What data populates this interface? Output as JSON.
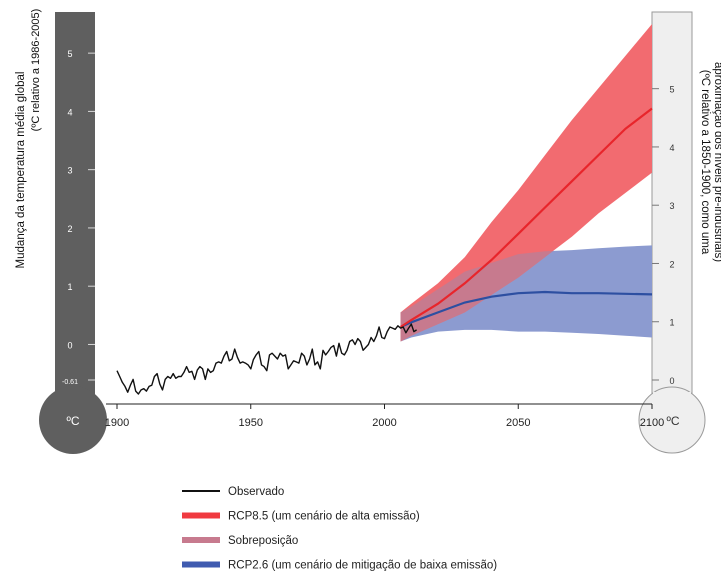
{
  "chart_data": {
    "type": "line",
    "x_ticks": [
      1900,
      1950,
      2000,
      2050,
      2100
    ],
    "xlim": [
      1896,
      2100
    ],
    "left_axis": {
      "label_line1": "Mudança da temperatura média global",
      "label_line2": "(ºC relativo a 1986-2005)",
      "ticks": [
        "5",
        "4",
        "3",
        "2",
        "1",
        "0",
        "-0.61"
      ],
      "unit": "ºC",
      "ylim": [
        -0.61,
        5.5
      ]
    },
    "right_axis": {
      "label_line1": "(ºC relativo a 1850-1900, como uma",
      "label_line2": "aproximação dos níveis pré-industriais)",
      "ticks": [
        "5",
        "4",
        "3",
        "2",
        "1",
        "0"
      ],
      "unit": "ºC",
      "offset_from_left": 0.61
    },
    "series": [
      {
        "name": "Observado",
        "color": "#111111",
        "x": [
          1900,
          1901,
          1902,
          1903,
          1904,
          1905,
          1906,
          1907,
          1908,
          1909,
          1910,
          1911,
          1912,
          1913,
          1914,
          1915,
          1916,
          1917,
          1918,
          1919,
          1920,
          1921,
          1922,
          1923,
          1924,
          1925,
          1926,
          1927,
          1928,
          1929,
          1930,
          1931,
          1932,
          1933,
          1934,
          1935,
          1936,
          1937,
          1938,
          1939,
          1940,
          1941,
          1942,
          1943,
          1944,
          1945,
          1946,
          1947,
          1948,
          1949,
          1950,
          1951,
          1952,
          1953,
          1954,
          1955,
          1956,
          1957,
          1958,
          1959,
          1960,
          1961,
          1962,
          1963,
          1964,
          1965,
          1966,
          1967,
          1968,
          1969,
          1970,
          1971,
          1972,
          1973,
          1974,
          1975,
          1976,
          1977,
          1978,
          1979,
          1980,
          1981,
          1982,
          1983,
          1984,
          1985,
          1986,
          1987,
          1988,
          1989,
          1990,
          1991,
          1992,
          1993,
          1994,
          1995,
          1996,
          1997,
          1998,
          1999,
          2000,
          2001,
          2002,
          2003,
          2004,
          2005,
          2006,
          2007,
          2008,
          2009,
          2010,
          2011,
          2012
        ],
        "y": [
          -0.45,
          -0.55,
          -0.65,
          -0.72,
          -0.82,
          -0.7,
          -0.6,
          -0.8,
          -0.85,
          -0.78,
          -0.76,
          -0.8,
          -0.72,
          -0.7,
          -0.55,
          -0.5,
          -0.68,
          -0.78,
          -0.6,
          -0.55,
          -0.58,
          -0.5,
          -0.58,
          -0.55,
          -0.55,
          -0.48,
          -0.38,
          -0.48,
          -0.46,
          -0.6,
          -0.44,
          -0.38,
          -0.42,
          -0.6,
          -0.42,
          -0.48,
          -0.45,
          -0.32,
          -0.3,
          -0.32,
          -0.2,
          -0.12,
          -0.28,
          -0.25,
          -0.08,
          -0.22,
          -0.32,
          -0.3,
          -0.32,
          -0.35,
          -0.42,
          -0.26,
          -0.18,
          -0.12,
          -0.35,
          -0.38,
          -0.45,
          -0.18,
          -0.15,
          -0.2,
          -0.25,
          -0.15,
          -0.2,
          -0.18,
          -0.42,
          -0.35,
          -0.28,
          -0.3,
          -0.32,
          -0.15,
          -0.2,
          -0.35,
          -0.25,
          -0.08,
          -0.35,
          -0.3,
          -0.42,
          -0.1,
          -0.18,
          -0.12,
          -0.05,
          -0.02,
          -0.2,
          0.02,
          -0.15,
          -0.18,
          -0.1,
          0.05,
          0.08,
          0.0,
          0.1,
          0.05,
          -0.1,
          -0.05,
          0.0,
          0.12,
          0.05,
          0.15,
          0.3,
          0.12,
          0.1,
          0.22,
          0.3,
          0.28,
          0.26,
          0.32,
          0.28,
          0.3,
          0.2,
          0.28,
          0.35,
          0.22,
          0.25
        ]
      },
      {
        "name": "RCP8.5 (um cenário de alta emissão)",
        "color": "#e8252b",
        "band_color": "#f26b70",
        "x": [
          2006,
          2010,
          2020,
          2030,
          2040,
          2050,
          2060,
          2070,
          2080,
          2090,
          2100
        ],
        "y": [
          0.3,
          0.42,
          0.7,
          1.05,
          1.45,
          1.9,
          2.35,
          2.8,
          3.25,
          3.7,
          4.05
        ],
        "lower": [
          0.05,
          0.15,
          0.35,
          0.55,
          0.85,
          1.15,
          1.5,
          1.85,
          2.25,
          2.6,
          2.95
        ],
        "upper": [
          0.55,
          0.7,
          1.05,
          1.5,
          2.1,
          2.65,
          3.25,
          3.85,
          4.4,
          4.95,
          5.5
        ]
      },
      {
        "name": "RCP2.6 (um cenário de mitigação de baixa emissão)",
        "color": "#2d4fa1",
        "band_color": "#8c9bd0",
        "x": [
          2006,
          2010,
          2020,
          2030,
          2040,
          2050,
          2060,
          2070,
          2080,
          2090,
          2100
        ],
        "y": [
          0.3,
          0.38,
          0.55,
          0.72,
          0.82,
          0.88,
          0.9,
          0.88,
          0.88,
          0.87,
          0.86
        ],
        "lower": [
          0.05,
          0.12,
          0.22,
          0.25,
          0.25,
          0.22,
          0.22,
          0.2,
          0.18,
          0.15,
          0.12
        ],
        "upper": [
          0.55,
          0.65,
          0.95,
          1.25,
          1.4,
          1.55,
          1.6,
          1.62,
          1.65,
          1.68,
          1.7
        ]
      }
    ],
    "overlap": {
      "name": "Sobreposição",
      "color": "#c77a8e"
    },
    "legend_position": "bottom"
  }
}
